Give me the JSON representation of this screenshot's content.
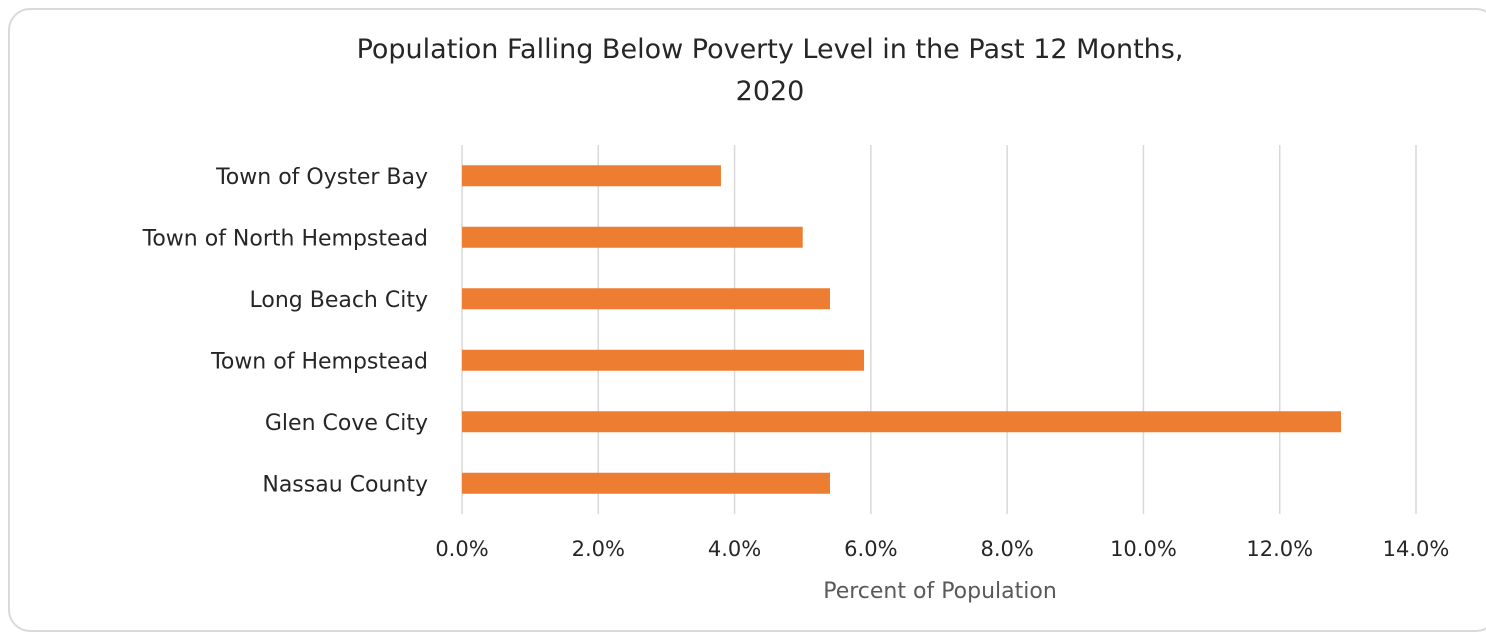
{
  "chart_data": {
    "type": "bar",
    "orientation": "horizontal",
    "title_line1": "Population Falling Below Poverty Level in the Past 12 Months,",
    "title_line2": "2020",
    "categories": [
      "Town of Oyster Bay",
      "Town of North Hempstead",
      "Long Beach City",
      "Town of Hempstead",
      "Glen Cove City",
      "Nassau County"
    ],
    "values": [
      3.8,
      5.0,
      5.4,
      5.9,
      12.9,
      5.4
    ],
    "xlabel": "Percent of Population",
    "ylabel": "",
    "xlim": [
      0,
      14
    ],
    "xticks": [
      "0.0%",
      "2.0%",
      "4.0%",
      "6.0%",
      "8.0%",
      "10.0%",
      "12.0%",
      "14.0%"
    ],
    "grid": "vertical",
    "legend": "none",
    "bar_color": "#ed7d31",
    "grid_color": "#d9d9d9"
  }
}
